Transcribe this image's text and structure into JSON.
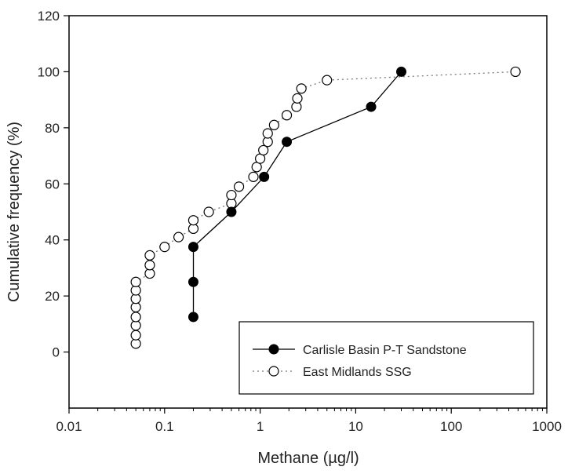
{
  "chart_data": {
    "type": "scatter",
    "title": "",
    "xlabel": "Methane (µg/l)",
    "ylabel": "Cumulative frequency (%)",
    "xscale": "log",
    "xlim": [
      0.01,
      1000
    ],
    "ylim": [
      -20,
      120
    ],
    "xticks": [
      0.01,
      0.1,
      1,
      10,
      100,
      1000
    ],
    "xtick_labels": [
      "0.01",
      "0.1",
      "1",
      "10",
      "100",
      "1000"
    ],
    "yticks": [
      0,
      20,
      40,
      60,
      80,
      100,
      120
    ],
    "ytick_labels": [
      "0",
      "20",
      "40",
      "60",
      "80",
      "100",
      "120"
    ],
    "grid": false,
    "legend_position": "bottom-right",
    "series": [
      {
        "name": "Carlisle Basin P-T Sandstone",
        "marker": "filled-circle",
        "line": "solid",
        "color": "#000000",
        "points": [
          [
            0.2,
            12.5
          ],
          [
            0.2,
            25
          ],
          [
            0.2,
            37.5
          ],
          [
            0.5,
            50
          ],
          [
            1.1,
            62.5
          ],
          [
            1.9,
            75
          ],
          [
            14.5,
            87.5
          ],
          [
            30,
            100
          ]
        ]
      },
      {
        "name": "East Midlands SSG",
        "marker": "open-circle",
        "line": "dotted",
        "color": "#000000",
        "points": [
          [
            0.05,
            3
          ],
          [
            0.05,
            6
          ],
          [
            0.05,
            9.5
          ],
          [
            0.05,
            12.5
          ],
          [
            0.05,
            16
          ],
          [
            0.05,
            19
          ],
          [
            0.05,
            22
          ],
          [
            0.05,
            25
          ],
          [
            0.07,
            28
          ],
          [
            0.07,
            31
          ],
          [
            0.07,
            34.5
          ],
          [
            0.1,
            37.5
          ],
          [
            0.14,
            41
          ],
          [
            0.2,
            44
          ],
          [
            0.2,
            47
          ],
          [
            0.29,
            50
          ],
          [
            0.5,
            53
          ],
          [
            0.5,
            56
          ],
          [
            0.6,
            59
          ],
          [
            0.85,
            62.5
          ],
          [
            0.92,
            66
          ],
          [
            1.0,
            69
          ],
          [
            1.08,
            72
          ],
          [
            1.2,
            75
          ],
          [
            1.2,
            78
          ],
          [
            1.4,
            81
          ],
          [
            1.9,
            84.5
          ],
          [
            2.4,
            87.5
          ],
          [
            2.45,
            90.5
          ],
          [
            2.7,
            94
          ],
          [
            5.0,
            97
          ],
          [
            470,
            100
          ]
        ]
      }
    ]
  }
}
